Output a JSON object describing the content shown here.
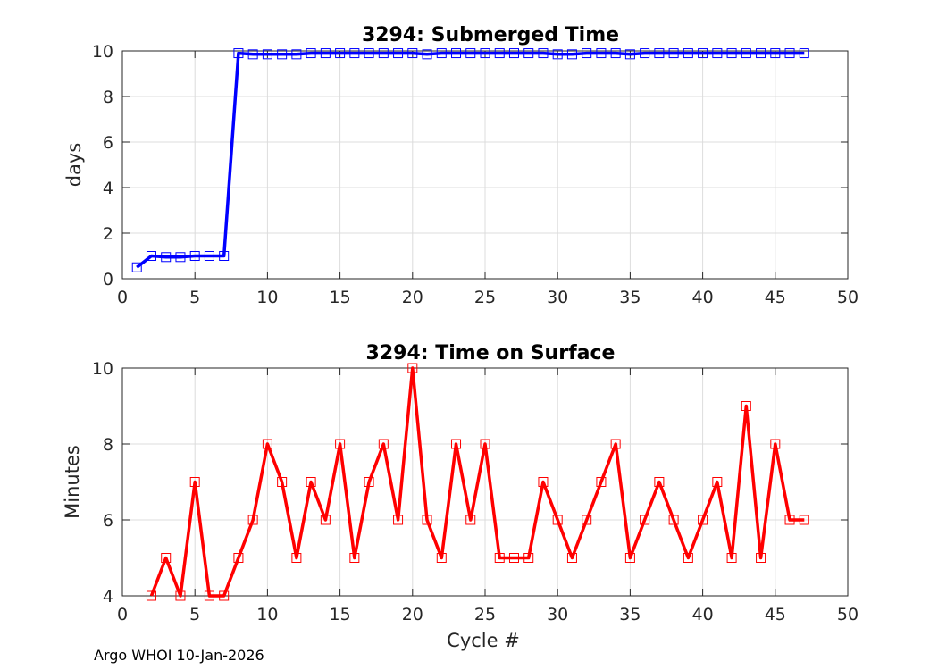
{
  "footer": "Argo WHOI 10-Jan-2026",
  "chart_data": [
    {
      "type": "line",
      "title": "3294: Submerged Time",
      "xlabel": "",
      "ylabel": "days",
      "xlim": [
        0,
        50
      ],
      "ylim": [
        0,
        10
      ],
      "xticks": [
        0,
        5,
        10,
        15,
        20,
        25,
        30,
        35,
        40,
        45,
        50
      ],
      "yticks": [
        0,
        2,
        4,
        6,
        8,
        10
      ],
      "grid": true,
      "color": "#0000ff",
      "marker": "square",
      "x": [
        1,
        2,
        3,
        4,
        5,
        6,
        7,
        8,
        9,
        10,
        11,
        12,
        13,
        14,
        15,
        16,
        17,
        18,
        19,
        20,
        21,
        22,
        23,
        24,
        25,
        26,
        27,
        28,
        29,
        30,
        31,
        32,
        33,
        34,
        35,
        36,
        37,
        38,
        39,
        40,
        41,
        42,
        43,
        44,
        45,
        46,
        47
      ],
      "values": [
        0.5,
        1.0,
        0.95,
        0.95,
        1.0,
        1.0,
        1.0,
        9.9,
        9.85,
        9.85,
        9.85,
        9.85,
        9.9,
        9.9,
        9.9,
        9.9,
        9.9,
        9.9,
        9.9,
        9.9,
        9.85,
        9.9,
        9.9,
        9.9,
        9.9,
        9.9,
        9.9,
        9.9,
        9.9,
        9.85,
        9.85,
        9.9,
        9.9,
        9.9,
        9.85,
        9.9,
        9.9,
        9.9,
        9.9,
        9.9,
        9.9,
        9.9,
        9.9,
        9.9,
        9.9,
        9.9,
        9.9
      ]
    },
    {
      "type": "line",
      "title": "3294: Time on Surface",
      "xlabel": "Cycle #",
      "ylabel": "Minutes",
      "xlim": [
        0,
        50
      ],
      "ylim": [
        4,
        10
      ],
      "xticks": [
        0,
        5,
        10,
        15,
        20,
        25,
        30,
        35,
        40,
        45,
        50
      ],
      "yticks": [
        4,
        6,
        8,
        10
      ],
      "grid": true,
      "color": "#ff0000",
      "marker": "square",
      "x": [
        2,
        3,
        4,
        5,
        6,
        7,
        8,
        9,
        10,
        11,
        12,
        13,
        14,
        15,
        16,
        17,
        18,
        19,
        20,
        21,
        22,
        23,
        24,
        25,
        26,
        27,
        28,
        29,
        30,
        31,
        32,
        33,
        34,
        35,
        36,
        37,
        38,
        39,
        40,
        41,
        42,
        43,
        44,
        45,
        46,
        47
      ],
      "values": [
        4,
        5,
        4,
        7,
        4,
        4,
        5,
        6,
        8,
        7,
        5,
        7,
        6,
        8,
        5,
        7,
        8,
        6,
        10,
        6,
        5,
        8,
        6,
        8,
        5,
        5,
        5,
        7,
        6,
        5,
        6,
        7,
        8,
        5,
        6,
        7,
        6,
        5,
        6,
        7,
        5,
        9,
        5,
        8,
        6,
        6
      ]
    }
  ]
}
